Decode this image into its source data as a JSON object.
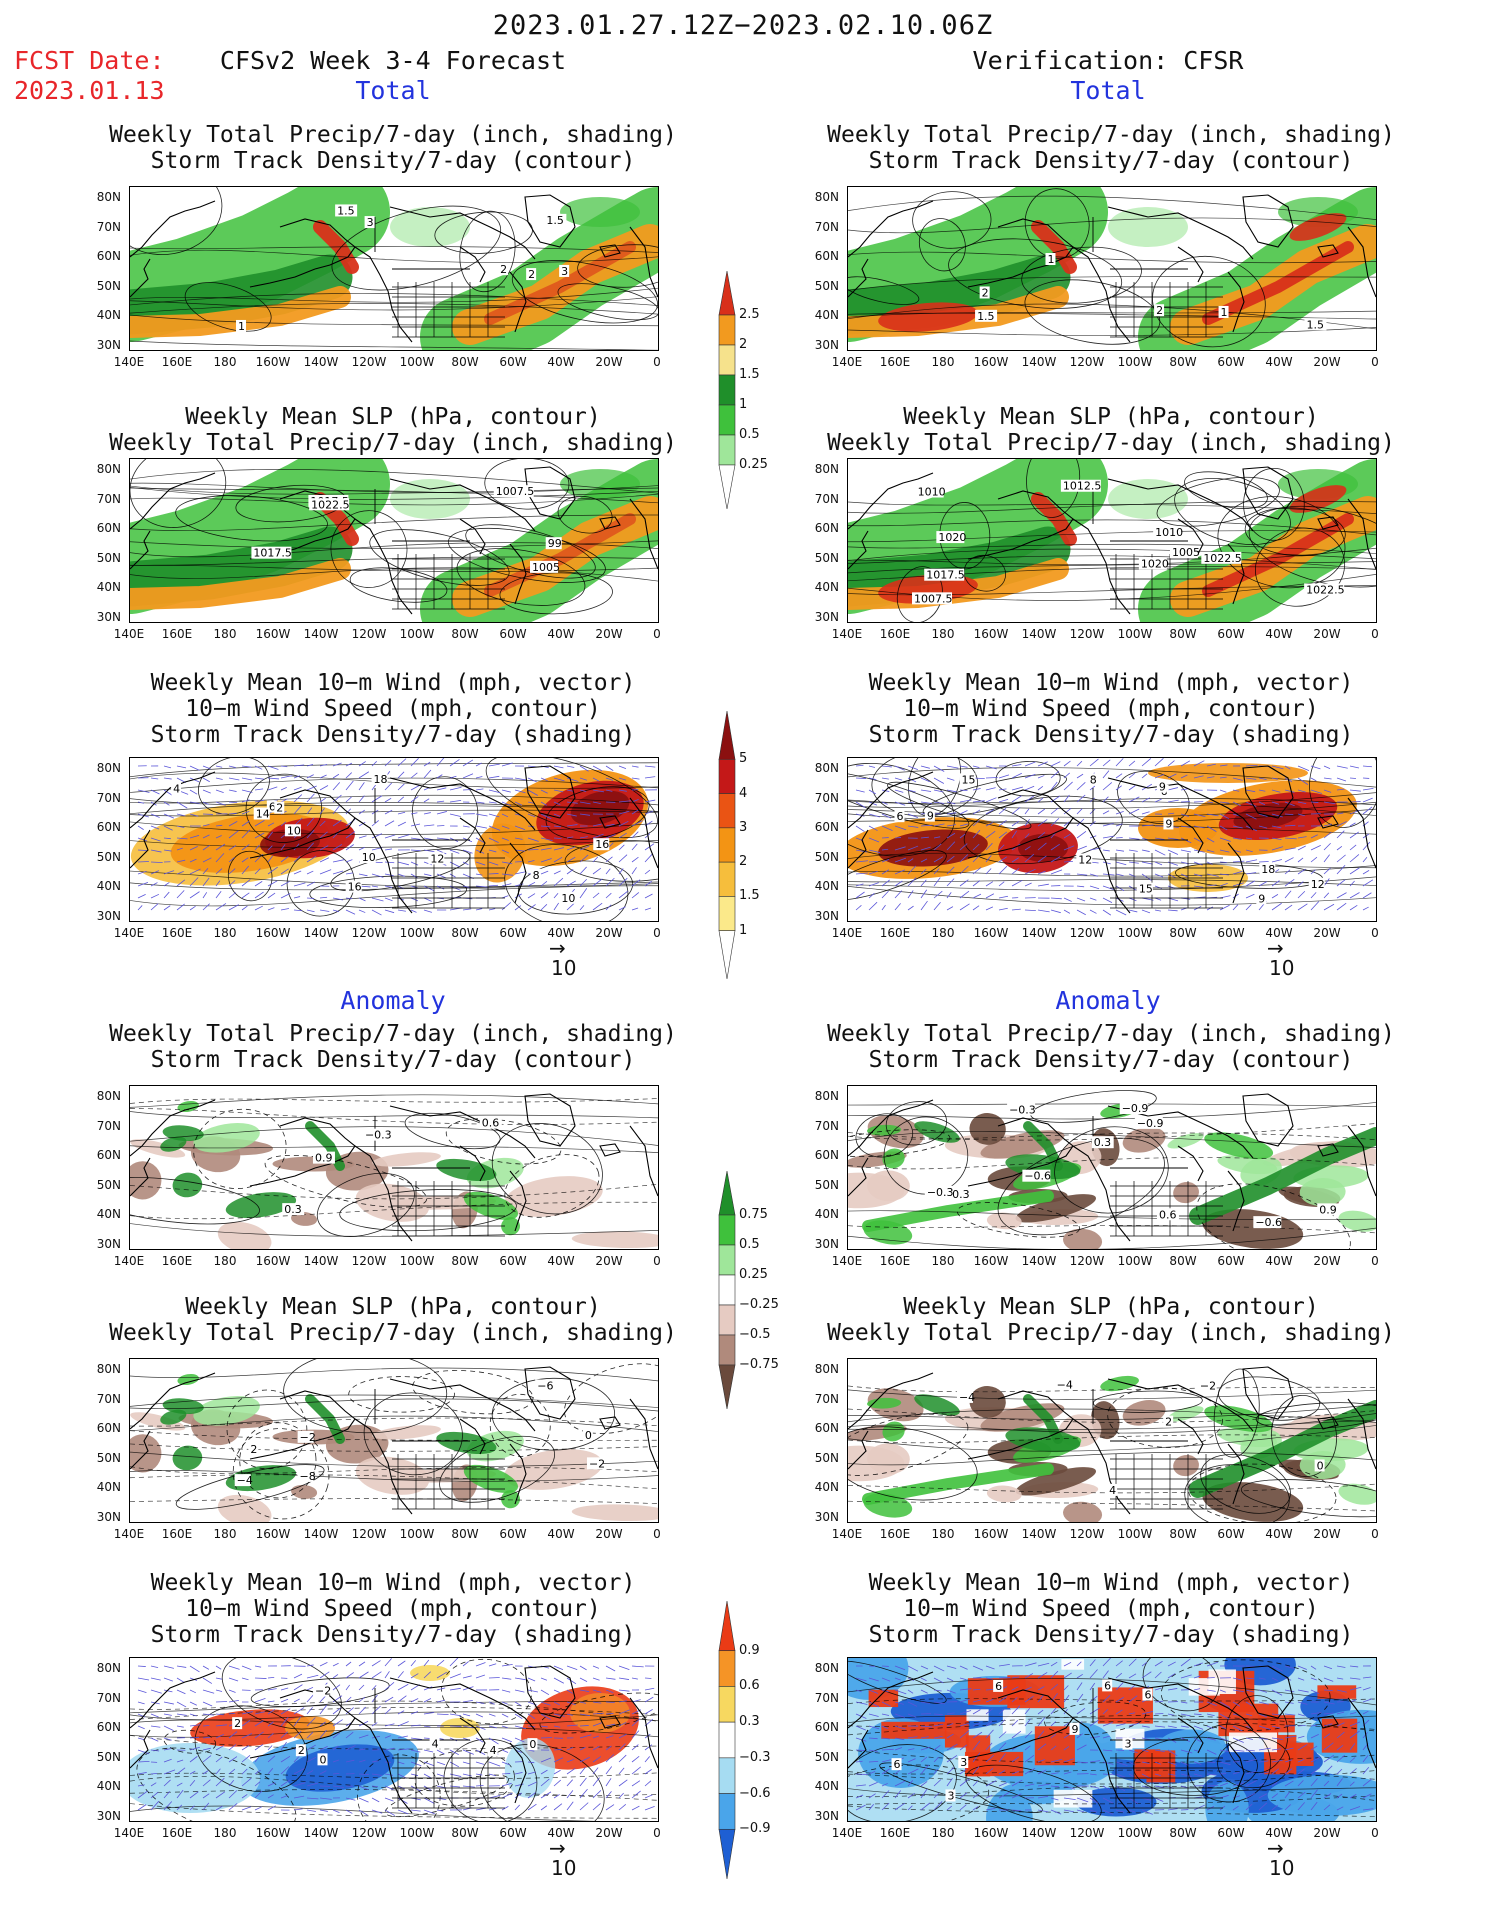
{
  "header": {
    "title": "2023.01.27.12Z−2023.02.10.06Z",
    "fcst_label": "FCST Date:",
    "fcst_date": "2023.01.13",
    "left_heading": "CFSv2 Week 3-4 Forecast",
    "right_heading": "Verification: CFSR"
  },
  "sections": {
    "total": "Total",
    "anomaly": "Anomaly"
  },
  "panel_titles": {
    "precip_storm": [
      "Weekly Total Precip/7-day (inch, shading)",
      "Storm Track Density/7-day (contour)"
    ],
    "slp_precip": [
      "Weekly Mean SLP (hPa, contour)",
      "Weekly Total Precip/7-day (inch, shading)"
    ],
    "wind_storm": [
      "Weekly Mean 10−m Wind (mph, vector)",
      "10−m Wind Speed (mph, contour)",
      "Storm Track Density/7-day (shading)"
    ]
  },
  "axes": {
    "lat_ticks": [
      "80N",
      "70N",
      "60N",
      "50N",
      "40N",
      "30N"
    ],
    "lon_ticks": [
      "140E",
      "160E",
      "180",
      "160W",
      "140W",
      "120W",
      "100W",
      "80W",
      "60W",
      "40W",
      "20W",
      "0"
    ]
  },
  "vector_ref": "10",
  "colorbars": {
    "total_precip": {
      "labels": [
        "2.5",
        "2",
        "1.5",
        "1",
        "0.5",
        "0.25"
      ],
      "colors": [
        "#d8301a",
        "#f29a1f",
        "#f6e28c",
        "#1f8f2a",
        "#3fc13c",
        "#9fe69a",
        "#ffffff"
      ]
    },
    "total_storm": {
      "labels": [
        "5",
        "4",
        "3",
        "2",
        "1.5",
        "1"
      ],
      "colors": [
        "#8b1010",
        "#c41818",
        "#ea5414",
        "#f39414",
        "#f6be3c",
        "#fbe98a",
        "#ffffff"
      ]
    },
    "anom_precip": {
      "labels": [
        "0.75",
        "0.5",
        "0.25",
        "−0.25",
        "−0.5",
        "−0.75"
      ],
      "colors": [
        "#1f8f2a",
        "#3fc13c",
        "#9fe69a",
        "#ffffff",
        "#e6cbc2",
        "#b08a7c",
        "#6a4a3c"
      ]
    },
    "anom_storm": {
      "labels": [
        "0.9",
        "0.6",
        "0.3",
        "−0.3",
        "−0.6",
        "−0.9"
      ],
      "colors": [
        "#ea3b16",
        "#f59426",
        "#f7d860",
        "#ffffff",
        "#a6dcf2",
        "#4aa5ea",
        "#1e5fd3"
      ]
    }
  },
  "panels": [
    {
      "id": "l1",
      "title": "precip_storm",
      "labels": [
        "3",
        "2",
        "1.5",
        "1",
        "3",
        "2",
        "1.5"
      ]
    },
    {
      "id": "r1",
      "title": "precip_storm",
      "labels": [
        "1",
        "2",
        "1.5",
        "1",
        "2",
        "1.5"
      ]
    },
    {
      "id": "l2",
      "title": "slp_precip",
      "labels": [
        "1007.5",
        "1017.5",
        "1005",
        "1017.5",
        "1022.5",
        "99"
      ]
    },
    {
      "id": "r2",
      "title": "slp_precip",
      "labels": [
        "1010",
        "1020",
        "1005",
        "1012.5",
        "1017.5",
        "1007.5",
        "1010",
        "1022.5",
        "1020",
        "1022.5"
      ]
    },
    {
      "id": "l3",
      "title": "wind_storm",
      "labels": [
        "12",
        "8",
        "10",
        "6",
        "14",
        "16",
        "16",
        "10",
        "10",
        "18",
        "2",
        "4"
      ]
    },
    {
      "id": "r3",
      "title": "wind_storm",
      "labels": [
        "8",
        "6",
        "9",
        "12",
        "12",
        "15",
        "9",
        "18",
        "15",
        "6",
        "9",
        "9"
      ]
    },
    {
      "id": "l4",
      "title": "precip_storm",
      "labels": [
        "−0.3",
        "0.9",
        "0.6",
        "0.3"
      ]
    },
    {
      "id": "r4",
      "title": "precip_storm",
      "labels": [
        "−0.6",
        "−0.3",
        "−0.9",
        "0.3",
        "−0.6",
        "−0.3",
        "0.6",
        "0.9",
        "−0.9",
        "−0.3"
      ]
    },
    {
      "id": "l5",
      "title": "slp_precip",
      "labels": [
        "−8",
        "−6",
        "−4",
        "−2",
        "0",
        "2",
        "−2"
      ]
    },
    {
      "id": "r5",
      "title": "slp_precip",
      "labels": [
        "−4",
        "2",
        "0",
        "4",
        "−2",
        "−4"
      ]
    },
    {
      "id": "l6",
      "title": "wind_storm",
      "labels": [
        "2",
        "0",
        "4",
        "−2",
        "0",
        "2",
        "4"
      ]
    },
    {
      "id": "r6",
      "title": "wind_storm",
      "labels": [
        "6",
        "3",
        "9",
        "3",
        "6",
        "6",
        "3",
        "6"
      ]
    }
  ]
}
